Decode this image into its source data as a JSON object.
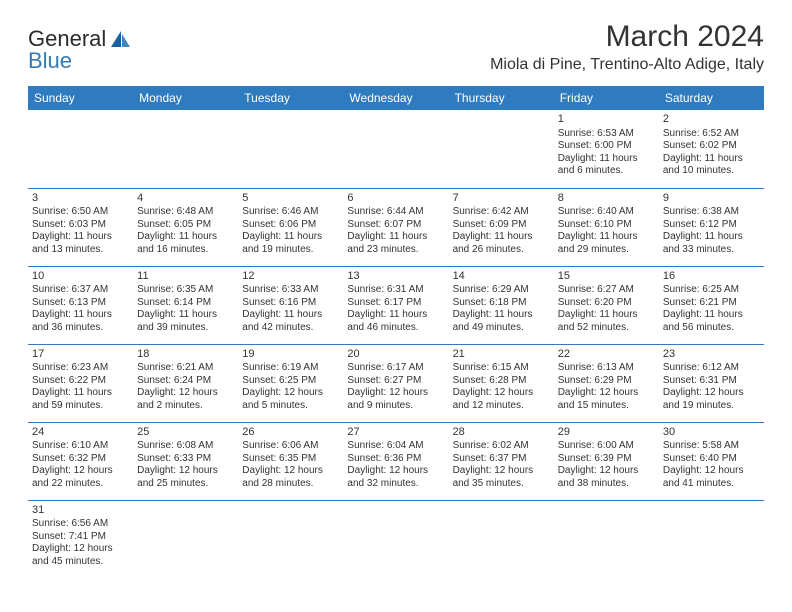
{
  "logo": {
    "part1": "General",
    "part2": "Blue"
  },
  "title": "March 2024",
  "location": "Miola di Pine, Trentino-Alto Adige, Italy",
  "header_bg": "#2f7bbf",
  "header_fg": "#ffffff",
  "rule_color": "#2f7bbf",
  "day_headers": [
    "Sunday",
    "Monday",
    "Tuesday",
    "Wednesday",
    "Thursday",
    "Friday",
    "Saturday"
  ],
  "weeks": [
    [
      null,
      null,
      null,
      null,
      null,
      {
        "n": "1",
        "sr": "Sunrise: 6:53 AM",
        "ss": "Sunset: 6:00 PM",
        "d1": "Daylight: 11 hours",
        "d2": "and 6 minutes."
      },
      {
        "n": "2",
        "sr": "Sunrise: 6:52 AM",
        "ss": "Sunset: 6:02 PM",
        "d1": "Daylight: 11 hours",
        "d2": "and 10 minutes."
      }
    ],
    [
      {
        "n": "3",
        "sr": "Sunrise: 6:50 AM",
        "ss": "Sunset: 6:03 PM",
        "d1": "Daylight: 11 hours",
        "d2": "and 13 minutes."
      },
      {
        "n": "4",
        "sr": "Sunrise: 6:48 AM",
        "ss": "Sunset: 6:05 PM",
        "d1": "Daylight: 11 hours",
        "d2": "and 16 minutes."
      },
      {
        "n": "5",
        "sr": "Sunrise: 6:46 AM",
        "ss": "Sunset: 6:06 PM",
        "d1": "Daylight: 11 hours",
        "d2": "and 19 minutes."
      },
      {
        "n": "6",
        "sr": "Sunrise: 6:44 AM",
        "ss": "Sunset: 6:07 PM",
        "d1": "Daylight: 11 hours",
        "d2": "and 23 minutes."
      },
      {
        "n": "7",
        "sr": "Sunrise: 6:42 AM",
        "ss": "Sunset: 6:09 PM",
        "d1": "Daylight: 11 hours",
        "d2": "and 26 minutes."
      },
      {
        "n": "8",
        "sr": "Sunrise: 6:40 AM",
        "ss": "Sunset: 6:10 PM",
        "d1": "Daylight: 11 hours",
        "d2": "and 29 minutes."
      },
      {
        "n": "9",
        "sr": "Sunrise: 6:38 AM",
        "ss": "Sunset: 6:12 PM",
        "d1": "Daylight: 11 hours",
        "d2": "and 33 minutes."
      }
    ],
    [
      {
        "n": "10",
        "sr": "Sunrise: 6:37 AM",
        "ss": "Sunset: 6:13 PM",
        "d1": "Daylight: 11 hours",
        "d2": "and 36 minutes."
      },
      {
        "n": "11",
        "sr": "Sunrise: 6:35 AM",
        "ss": "Sunset: 6:14 PM",
        "d1": "Daylight: 11 hours",
        "d2": "and 39 minutes."
      },
      {
        "n": "12",
        "sr": "Sunrise: 6:33 AM",
        "ss": "Sunset: 6:16 PM",
        "d1": "Daylight: 11 hours",
        "d2": "and 42 minutes."
      },
      {
        "n": "13",
        "sr": "Sunrise: 6:31 AM",
        "ss": "Sunset: 6:17 PM",
        "d1": "Daylight: 11 hours",
        "d2": "and 46 minutes."
      },
      {
        "n": "14",
        "sr": "Sunrise: 6:29 AM",
        "ss": "Sunset: 6:18 PM",
        "d1": "Daylight: 11 hours",
        "d2": "and 49 minutes."
      },
      {
        "n": "15",
        "sr": "Sunrise: 6:27 AM",
        "ss": "Sunset: 6:20 PM",
        "d1": "Daylight: 11 hours",
        "d2": "and 52 minutes."
      },
      {
        "n": "16",
        "sr": "Sunrise: 6:25 AM",
        "ss": "Sunset: 6:21 PM",
        "d1": "Daylight: 11 hours",
        "d2": "and 56 minutes."
      }
    ],
    [
      {
        "n": "17",
        "sr": "Sunrise: 6:23 AM",
        "ss": "Sunset: 6:22 PM",
        "d1": "Daylight: 11 hours",
        "d2": "and 59 minutes."
      },
      {
        "n": "18",
        "sr": "Sunrise: 6:21 AM",
        "ss": "Sunset: 6:24 PM",
        "d1": "Daylight: 12 hours",
        "d2": "and 2 minutes."
      },
      {
        "n": "19",
        "sr": "Sunrise: 6:19 AM",
        "ss": "Sunset: 6:25 PM",
        "d1": "Daylight: 12 hours",
        "d2": "and 5 minutes."
      },
      {
        "n": "20",
        "sr": "Sunrise: 6:17 AM",
        "ss": "Sunset: 6:27 PM",
        "d1": "Daylight: 12 hours",
        "d2": "and 9 minutes."
      },
      {
        "n": "21",
        "sr": "Sunrise: 6:15 AM",
        "ss": "Sunset: 6:28 PM",
        "d1": "Daylight: 12 hours",
        "d2": "and 12 minutes."
      },
      {
        "n": "22",
        "sr": "Sunrise: 6:13 AM",
        "ss": "Sunset: 6:29 PM",
        "d1": "Daylight: 12 hours",
        "d2": "and 15 minutes."
      },
      {
        "n": "23",
        "sr": "Sunrise: 6:12 AM",
        "ss": "Sunset: 6:31 PM",
        "d1": "Daylight: 12 hours",
        "d2": "and 19 minutes."
      }
    ],
    [
      {
        "n": "24",
        "sr": "Sunrise: 6:10 AM",
        "ss": "Sunset: 6:32 PM",
        "d1": "Daylight: 12 hours",
        "d2": "and 22 minutes."
      },
      {
        "n": "25",
        "sr": "Sunrise: 6:08 AM",
        "ss": "Sunset: 6:33 PM",
        "d1": "Daylight: 12 hours",
        "d2": "and 25 minutes."
      },
      {
        "n": "26",
        "sr": "Sunrise: 6:06 AM",
        "ss": "Sunset: 6:35 PM",
        "d1": "Daylight: 12 hours",
        "d2": "and 28 minutes."
      },
      {
        "n": "27",
        "sr": "Sunrise: 6:04 AM",
        "ss": "Sunset: 6:36 PM",
        "d1": "Daylight: 12 hours",
        "d2": "and 32 minutes."
      },
      {
        "n": "28",
        "sr": "Sunrise: 6:02 AM",
        "ss": "Sunset: 6:37 PM",
        "d1": "Daylight: 12 hours",
        "d2": "and 35 minutes."
      },
      {
        "n": "29",
        "sr": "Sunrise: 6:00 AM",
        "ss": "Sunset: 6:39 PM",
        "d1": "Daylight: 12 hours",
        "d2": "and 38 minutes."
      },
      {
        "n": "30",
        "sr": "Sunrise: 5:58 AM",
        "ss": "Sunset: 6:40 PM",
        "d1": "Daylight: 12 hours",
        "d2": "and 41 minutes."
      }
    ],
    [
      {
        "n": "31",
        "sr": "Sunrise: 6:56 AM",
        "ss": "Sunset: 7:41 PM",
        "d1": "Daylight: 12 hours",
        "d2": "and 45 minutes."
      },
      null,
      null,
      null,
      null,
      null,
      null
    ]
  ]
}
